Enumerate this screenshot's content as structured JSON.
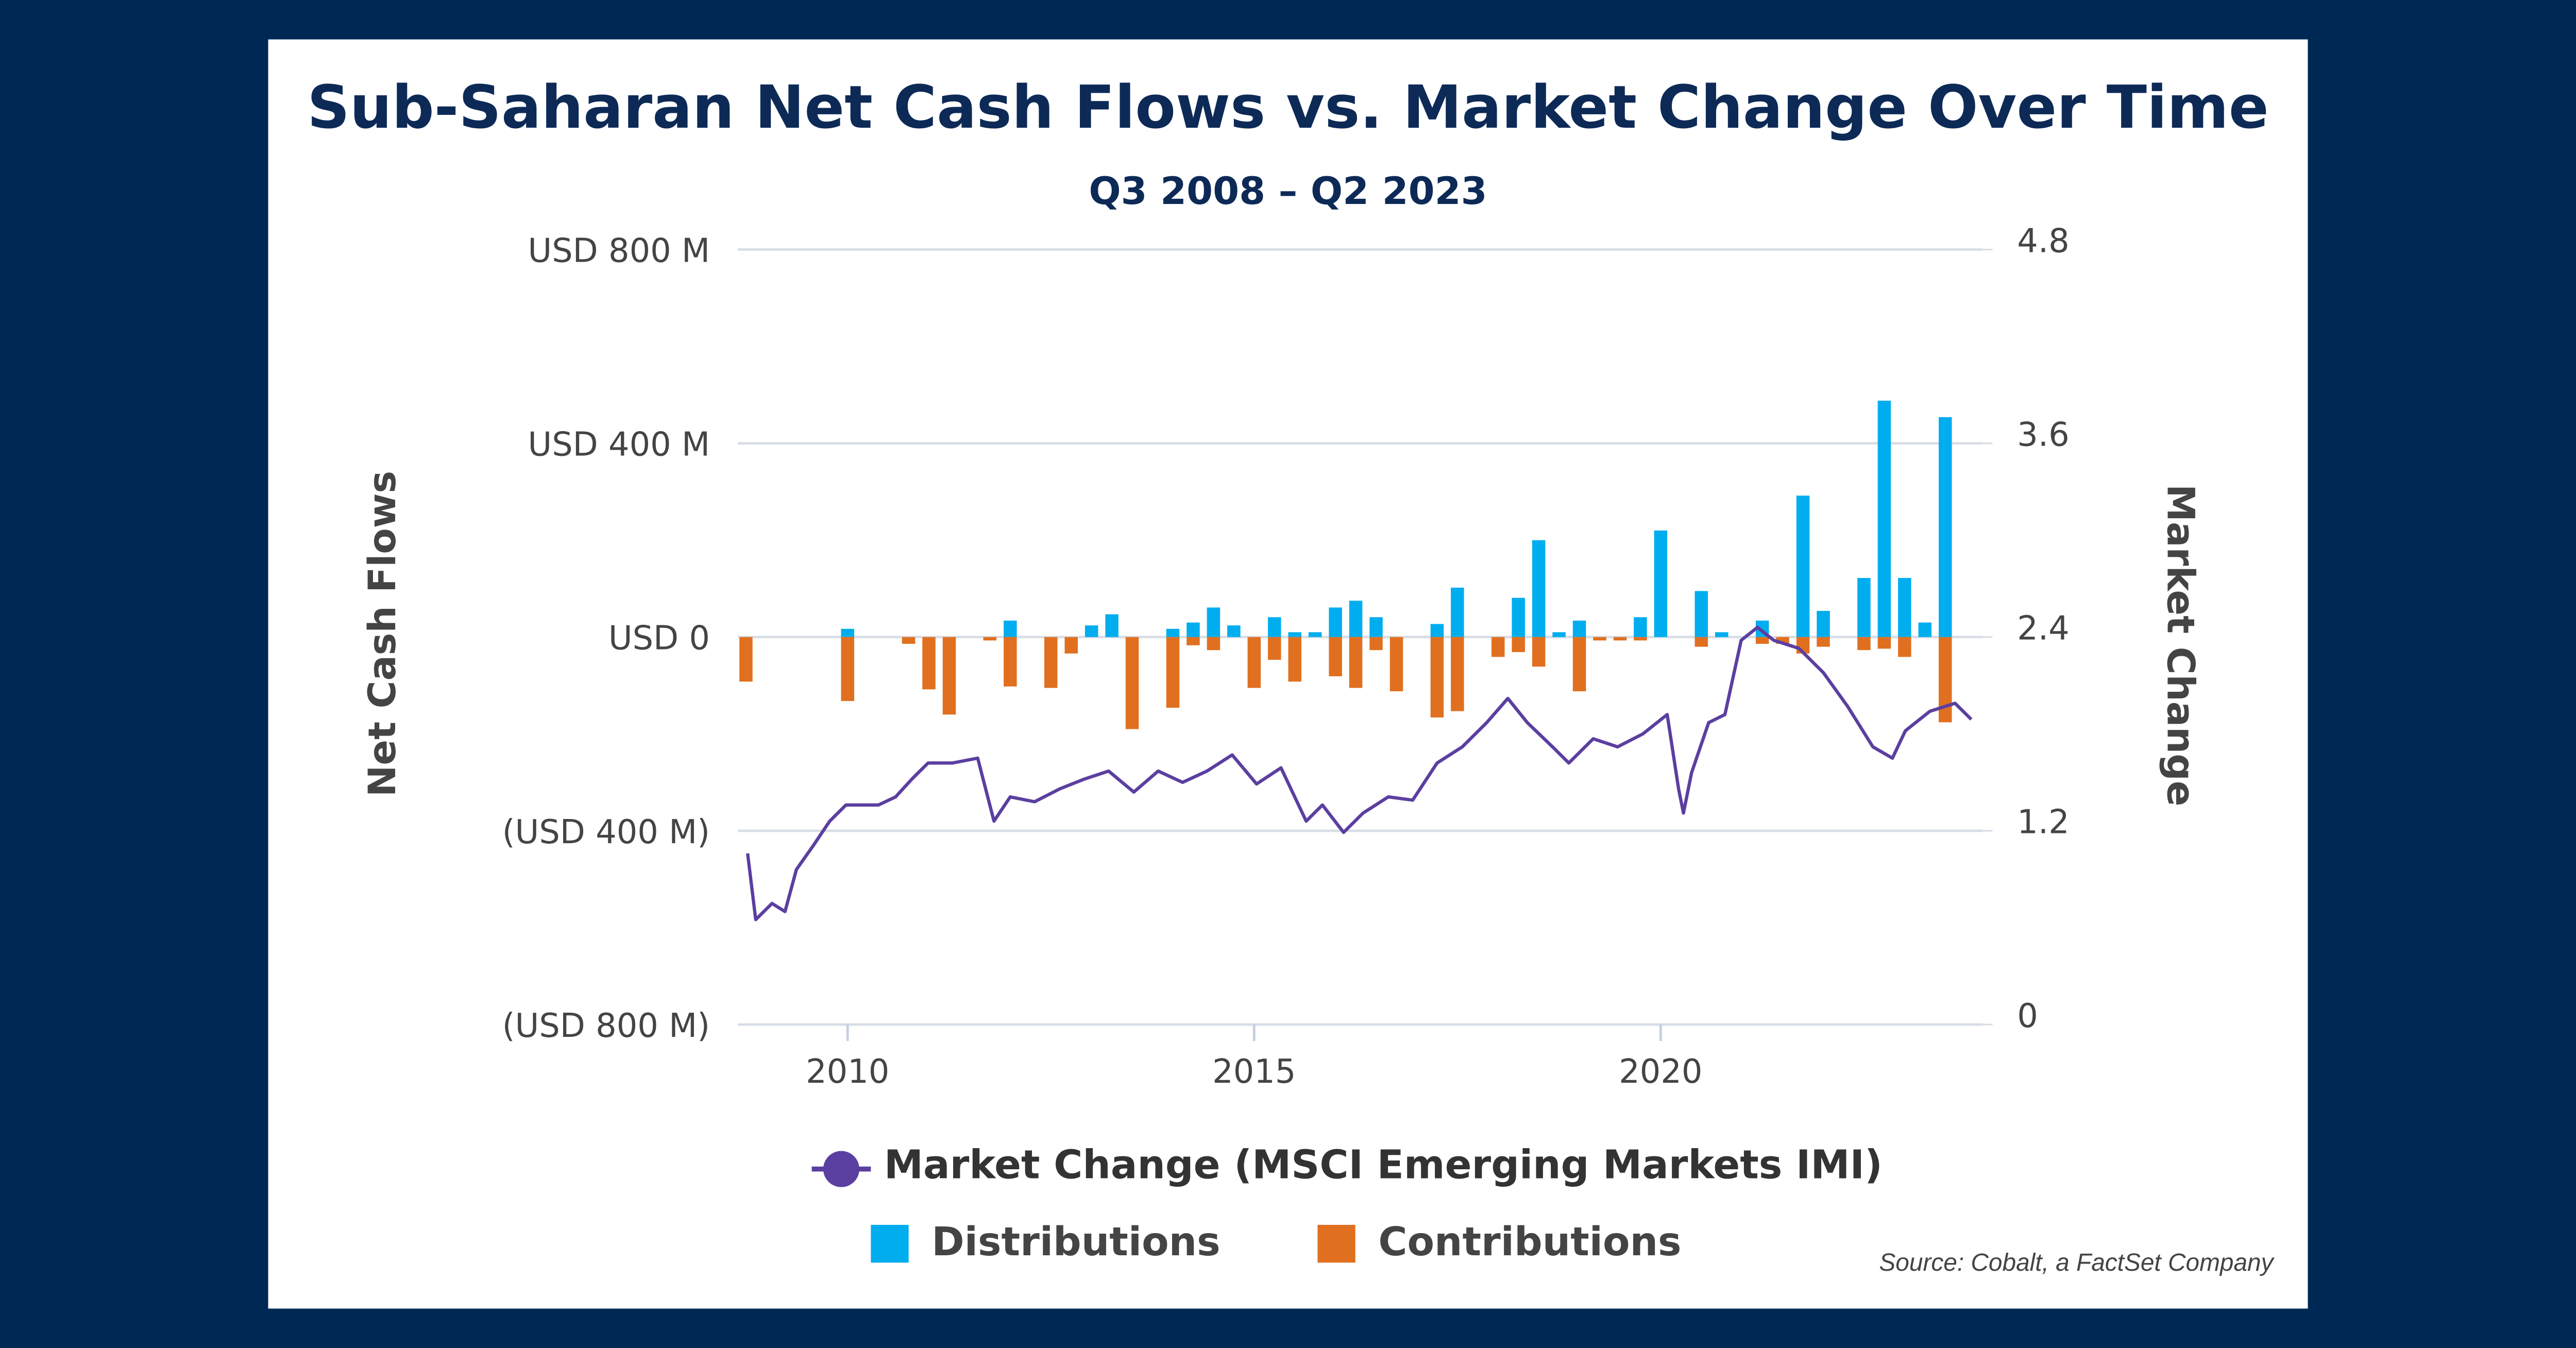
{
  "chart_data": {
    "type": "bar",
    "title": "Sub-Saharan Net Cash Flows vs. Market Change Over Time",
    "subtitle": "Q3 2008 – Q2 2023",
    "y_label": "Net Cash Flows",
    "y2_label": "Market Change",
    "source": "Source: Cobalt, a FactSet Company",
    "x": [
      2008.75,
      2009,
      2009.25,
      2009.5,
      2009.75,
      2010,
      2010.25,
      2010.5,
      2010.75,
      2011,
      2011.25,
      2011.5,
      2011.75,
      2012,
      2012.25,
      2012.5,
      2012.75,
      2013,
      2013.25,
      2013.5,
      2013.75,
      2014,
      2014.25,
      2014.5,
      2014.75,
      2015,
      2015.25,
      2015.5,
      2015.75,
      2016,
      2016.25,
      2016.5,
      2016.75,
      2017,
      2017.25,
      2017.5,
      2017.75,
      2018,
      2018.25,
      2018.5,
      2018.75,
      2019,
      2019.25,
      2019.5,
      2019.75,
      2020,
      2020.25,
      2020.5,
      2020.75,
      2021,
      2021.25,
      2021.5,
      2021.75,
      2022,
      2022.25,
      2022.5,
      2022.75,
      2023,
      2023.25,
      2023.5
    ],
    "xlim": [
      2008.65,
      2023.96
    ],
    "xticks": [
      2010,
      2015,
      2020
    ],
    "ylim": [
      -800,
      800
    ],
    "yticks": [
      {
        "value": 800,
        "label": "USD 800 M"
      },
      {
        "value": 400,
        "label": "USD 400 M"
      },
      {
        "value": 0,
        "label": "USD 0"
      },
      {
        "value": -400,
        "label": "(USD 400 M)"
      },
      {
        "value": -800,
        "label": "(USD 800 M)"
      }
    ],
    "y2lim": [
      0,
      4.8
    ],
    "y2ticks": [
      0,
      1.2,
      2.4,
      3.6,
      4.8
    ],
    "grid": true,
    "series": [
      {
        "name": "Distributions",
        "color": "#00adef",
        "type": "bar",
        "values": [
          0,
          0,
          0,
          0,
          0,
          17,
          0,
          0,
          0,
          0,
          0,
          0,
          0,
          34,
          0,
          0,
          0,
          24,
          47,
          0,
          0,
          17,
          30,
          61,
          24,
          0,
          41,
          10,
          10,
          61,
          75,
          41,
          0,
          0,
          27,
          102,
          0,
          0,
          81,
          200,
          10,
          34,
          0,
          0,
          41,
          220,
          0,
          95,
          10,
          0,
          34,
          0,
          292,
          54,
          0,
          122,
          488,
          122,
          30,
          454
        ]
      },
      {
        "name": "Contributions",
        "color": "#e07020",
        "type": "bar",
        "values": [
          -92,
          0,
          0,
          0,
          0,
          -132,
          0,
          0,
          -14,
          -108,
          -160,
          0,
          -7,
          -102,
          0,
          -105,
          -34,
          0,
          0,
          -190,
          0,
          -146,
          -17,
          -27,
          0,
          -105,
          -47,
          -92,
          0,
          -81,
          -105,
          -27,
          -112,
          0,
          -166,
          -153,
          0,
          -41,
          -31,
          -61,
          0,
          -112,
          -7,
          -7,
          -7,
          0,
          0,
          -20,
          0,
          0,
          -14,
          -14,
          -34,
          -20,
          0,
          -27,
          -24,
          -41,
          0,
          -176
        ]
      },
      {
        "name": "Market Change (MSCI Emerging Markets IMI)",
        "color": "#5b3fa0",
        "type": "line",
        "axis": "y2",
        "x": [
          2008.77,
          2008.87,
          2009.07,
          2009.23,
          2009.37,
          2009.58,
          2009.78,
          2009.98,
          2010.18,
          2010.38,
          2010.59,
          2010.79,
          2010.99,
          2011.29,
          2011.6,
          2011.8,
          2012,
          2012.3,
          2012.61,
          2012.91,
          2013.21,
          2013.52,
          2013.82,
          2014.12,
          2014.42,
          2014.73,
          2015.03,
          2015.33,
          2015.64,
          2015.84,
          2016.1,
          2016.34,
          2016.65,
          2016.95,
          2017.25,
          2017.56,
          2017.86,
          2018.12,
          2018.36,
          2018.67,
          2018.87,
          2019.17,
          2019.47,
          2019.78,
          2020.08,
          2020.22,
          2020.28,
          2020.38,
          2020.59,
          2020.79,
          2020.99,
          2021.19,
          2021.39,
          2021.7,
          2022,
          2022.3,
          2022.61,
          2022.85,
          2023.01,
          2023.31,
          2023.62,
          2023.82
        ],
        "values": [
          1.06,
          0.65,
          0.75,
          0.7,
          0.96,
          1.11,
          1.26,
          1.36,
          1.36,
          1.36,
          1.41,
          1.52,
          1.62,
          1.62,
          1.65,
          1.26,
          1.41,
          1.38,
          1.46,
          1.52,
          1.57,
          1.44,
          1.57,
          1.5,
          1.57,
          1.67,
          1.49,
          1.59,
          1.26,
          1.36,
          1.19,
          1.31,
          1.41,
          1.39,
          1.62,
          1.72,
          1.87,
          2.02,
          1.87,
          1.72,
          1.62,
          1.77,
          1.72,
          1.8,
          1.92,
          1.46,
          1.31,
          1.56,
          1.87,
          1.92,
          2.38,
          2.46,
          2.38,
          2.33,
          2.18,
          1.97,
          1.72,
          1.65,
          1.82,
          1.94,
          1.99,
          1.89
        ]
      }
    ]
  }
}
